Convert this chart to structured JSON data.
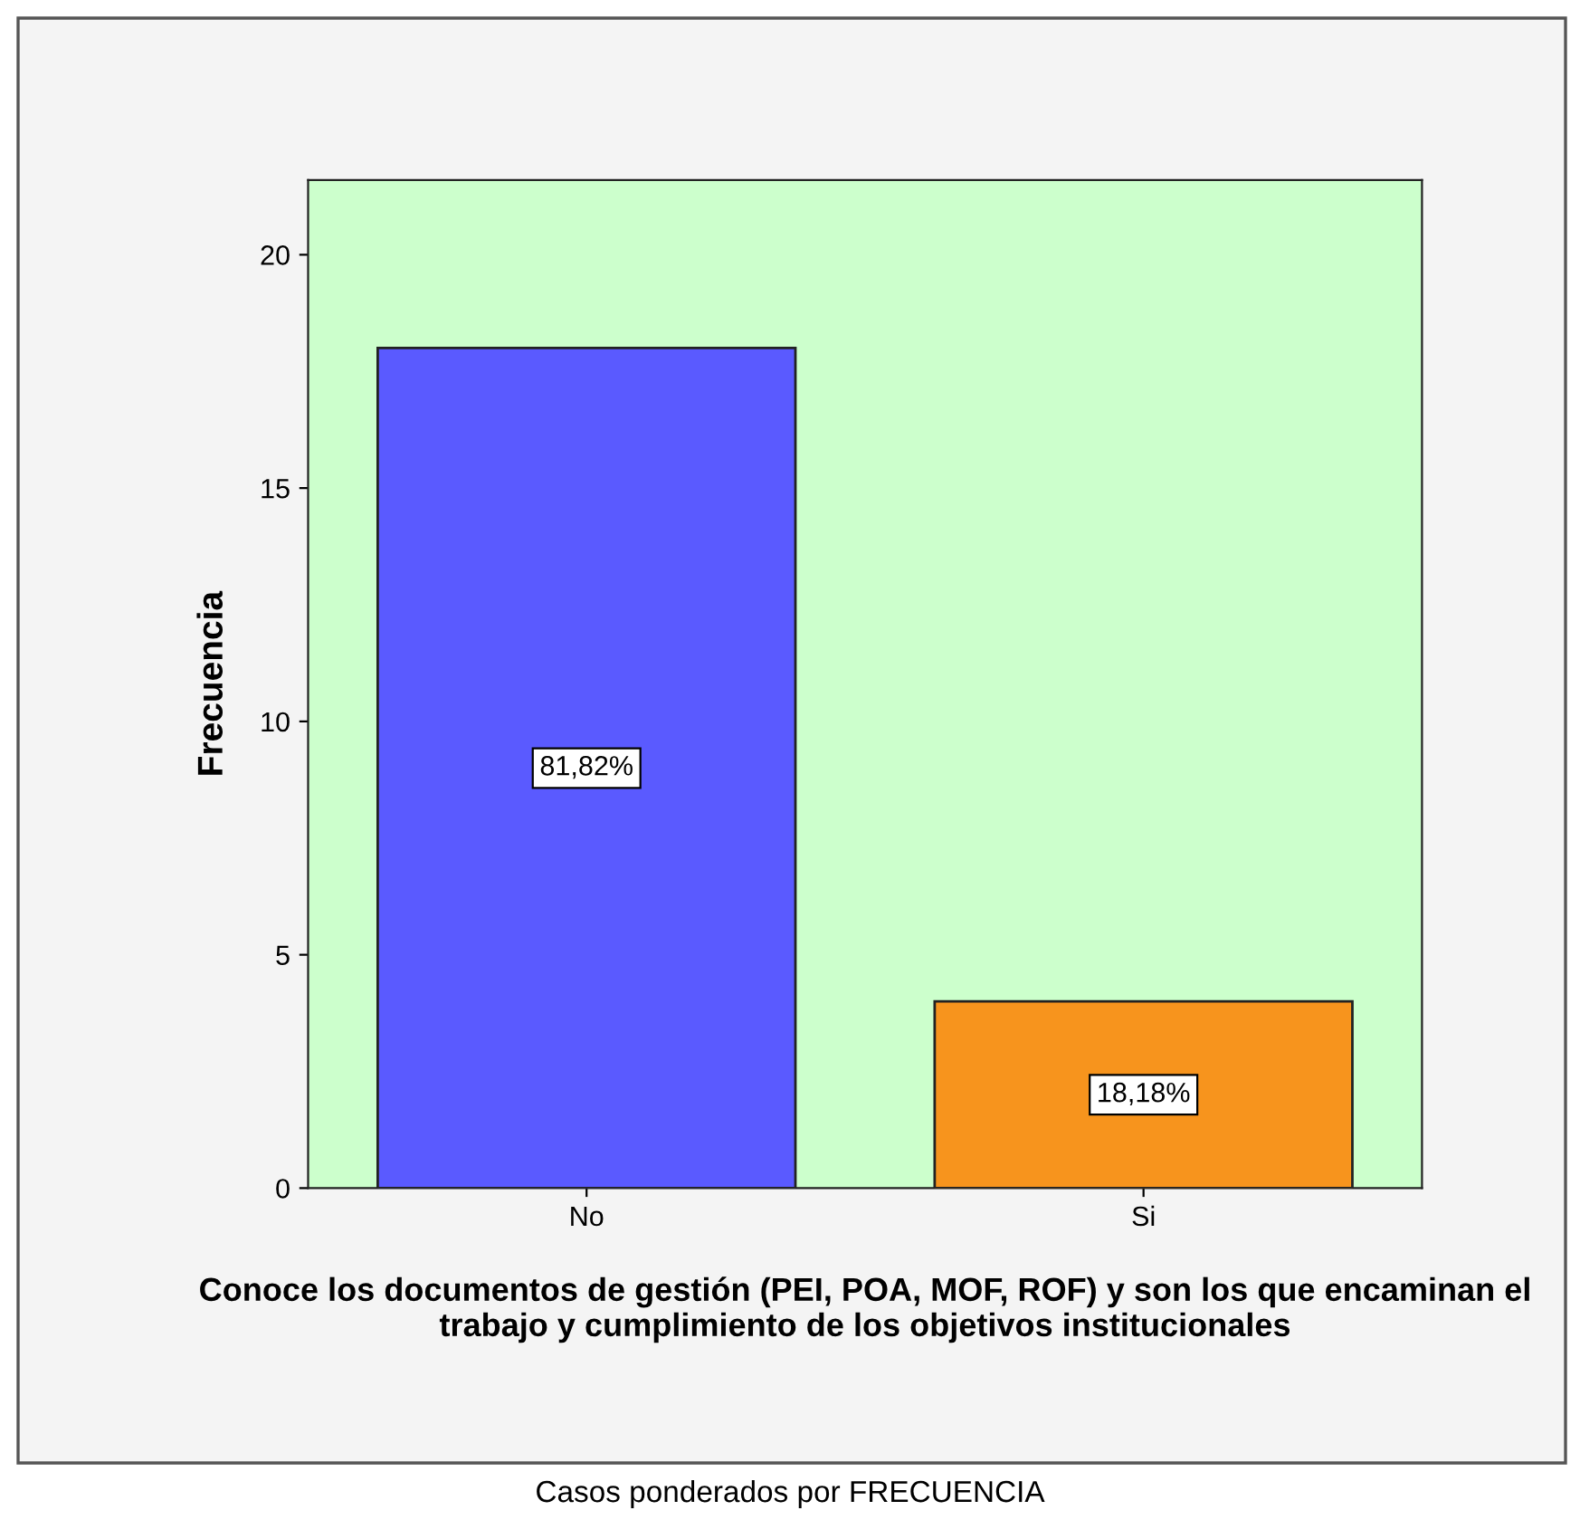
{
  "chart_data": {
    "type": "bar",
    "categories": [
      "No",
      "Si"
    ],
    "values": [
      18,
      4
    ],
    "colors": [
      "#5a5aff",
      "#f7941d"
    ],
    "xlabel": "Conoce los documentos de gestión (PEI, POA, MOF, ROF) y son los que encaminan el trabajo y cumplimiento de los objetivos institucionales",
    "ylabel": "Frecuencia",
    "ylim": [
      0,
      21.6
    ],
    "yticks": [
      0,
      5,
      10,
      15,
      20
    ],
    "grid": false,
    "legend": false,
    "annotations": [
      "Casos ponderados por FRECUENCIA",
      "81,82%",
      "18,18%"
    ]
  }
}
